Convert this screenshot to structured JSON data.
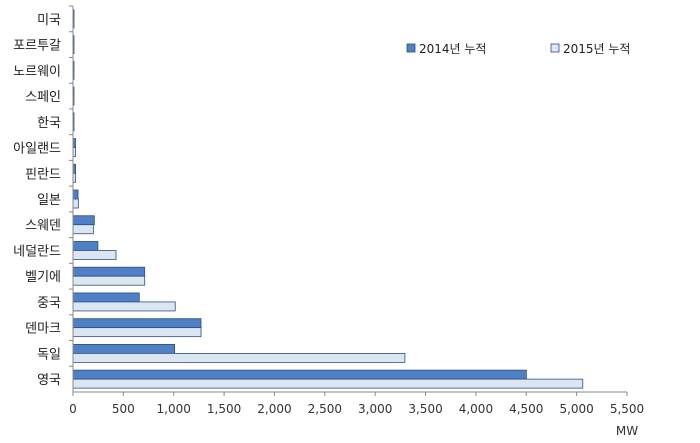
{
  "chart_data": {
    "type": "bar",
    "orientation": "horizontal",
    "categories": [
      "미국",
      "포르투갈",
      "노르웨이",
      "스페인",
      "한국",
      "아일랜드",
      "핀란드",
      "일본",
      "스웨덴",
      "네덜란드",
      "벨기에",
      "중국",
      "덴마크",
      "독일",
      "영국"
    ],
    "series": [
      {
        "name": "2014년 누적",
        "color": "#4f7fc4",
        "values": [
          1,
          2,
          2,
          5,
          5,
          25,
          26,
          50,
          212,
          247,
          712,
          658,
          1271,
          1009,
          4501
        ]
      },
      {
        "name": "2015년 누적",
        "color": "#dce6f2",
        "values": [
          1,
          2,
          2,
          5,
          5,
          25,
          26,
          53,
          202,
          427,
          712,
          1015,
          1271,
          3295,
          5061
        ]
      }
    ],
    "xlabel": "MW",
    "xlim": [
      0,
      5500
    ],
    "xticks": [
      "0",
      "500",
      "1,000",
      "1,500",
      "2,000",
      "2,500",
      "3,000",
      "3,500",
      "4,000",
      "4,500",
      "5,000",
      "5,500"
    ],
    "grid": false,
    "legend_position": "top-right"
  }
}
